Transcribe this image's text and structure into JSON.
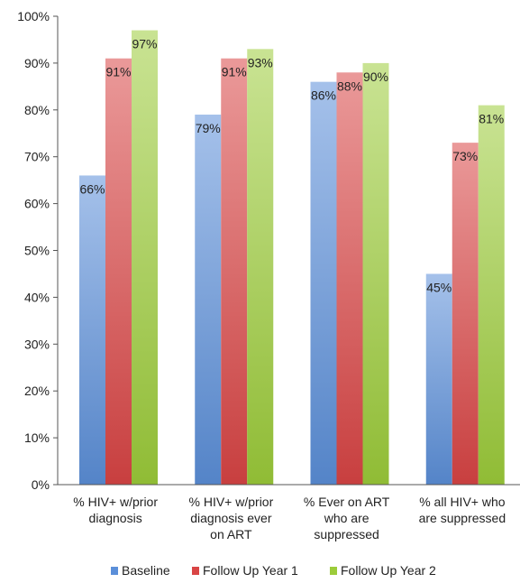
{
  "chart_data": {
    "type": "bar",
    "categories": [
      [
        "% HIV+ w/prior",
        "diagnosis"
      ],
      [
        "% HIV+ w/prior",
        "diagnosis ever",
        "on ART"
      ],
      [
        "% Ever on ART",
        "who are",
        "suppressed"
      ],
      [
        "% all HIV+ who",
        "are suppressed"
      ]
    ],
    "series": [
      {
        "name": "Baseline",
        "values": [
          66,
          79,
          86,
          45
        ],
        "color": "#5b8fd9"
      },
      {
        "name": "Follow Up Year 1",
        "values": [
          91,
          91,
          88,
          73
        ],
        "color": "#d94545"
      },
      {
        "name": "Follow Up Year 2",
        "values": [
          97,
          93,
          90,
          81
        ],
        "color": "#9ccc3a"
      }
    ],
    "data_labels": [
      [
        "66%",
        "79%",
        "86%",
        "45%"
      ],
      [
        "91%",
        "91%",
        "88%",
        "73%"
      ],
      [
        "97%",
        "93%",
        "90%",
        "81%"
      ]
    ],
    "y_ticks": [
      0,
      10,
      20,
      30,
      40,
      50,
      60,
      70,
      80,
      90,
      100
    ],
    "y_tick_labels": [
      "0%",
      "10%",
      "20%",
      "30%",
      "40%",
      "50%",
      "60%",
      "70%",
      "80%",
      "90%",
      "100%"
    ],
    "ylim": [
      0,
      100
    ],
    "grid": false,
    "legend_position": "bottom"
  }
}
